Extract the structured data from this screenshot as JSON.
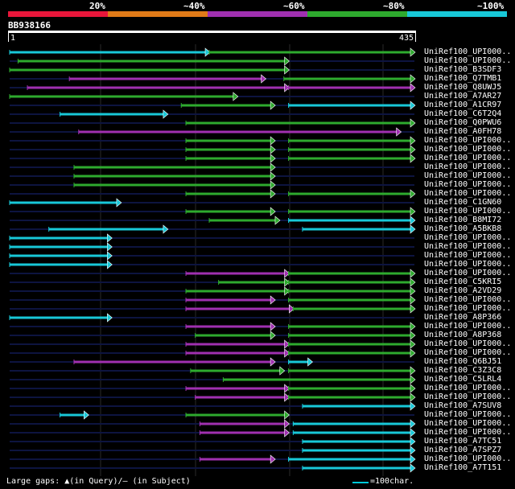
{
  "colors": {
    "c20": "#e8163a",
    "c40": "#e07a18",
    "c60": "#a030b0",
    "c80": "#2eaa2e",
    "c100": "#18c8d8",
    "grid": "#2a2a2a",
    "track": "#0d1440"
  },
  "legend": [
    {
      "label": "20%",
      "color": "#e8163a"
    },
    {
      "label": "~40%",
      "color": "#e07a18"
    },
    {
      "label": "~60%",
      "color": "#a030b0"
    },
    {
      "label": "~80%",
      "color": "#2eaa2e"
    },
    {
      "label": "~100%",
      "color": "#18c8d8"
    }
  ],
  "query": {
    "name": "BB938166",
    "start": "1",
    "end": "435",
    "length": 435
  },
  "hits": [
    {
      "label": "UniRef100_UPI000..",
      "segs": [
        [
          1,
          215,
          "c100"
        ],
        [
          215,
          435,
          "c80"
        ]
      ]
    },
    {
      "label": "UniRef100_UPI000..",
      "segs": [
        [
          10,
          300,
          "c80"
        ]
      ]
    },
    {
      "label": "UniRef100_B3SDF3",
      "segs": [
        [
          1,
          300,
          "c80"
        ]
      ]
    },
    {
      "label": "UniRef100_Q7TMB1",
      "segs": [
        [
          65,
          275,
          "c60"
        ],
        [
          295,
          435,
          "c80"
        ]
      ]
    },
    {
      "label": "UniRef100_Q8UWJ5",
      "segs": [
        [
          20,
          300,
          "c60"
        ],
        [
          300,
          435,
          "c60"
        ]
      ]
    },
    {
      "label": "UniRef100_A7AR27",
      "segs": [
        [
          1,
          245,
          "c80"
        ]
      ]
    },
    {
      "label": "UniRef100_A1CR97",
      "segs": [
        [
          185,
          285,
          "c80"
        ],
        [
          300,
          435,
          "c100"
        ]
      ]
    },
    {
      "label": "UniRef100_C6T2Q4",
      "segs": [
        [
          55,
          170,
          "c100"
        ]
      ]
    },
    {
      "label": "UniRef100_Q0PWU6",
      "segs": [
        [
          190,
          435,
          "c80"
        ]
      ]
    },
    {
      "label": "UniRef100_A0FH78",
      "segs": [
        [
          75,
          420,
          "c60"
        ]
      ]
    },
    {
      "label": "UniRef100_UPI000..",
      "segs": [
        [
          190,
          285,
          "c80"
        ],
        [
          300,
          435,
          "c80"
        ]
      ]
    },
    {
      "label": "UniRef100_UPI000..",
      "segs": [
        [
          190,
          285,
          "c80"
        ],
        [
          300,
          435,
          "c80"
        ]
      ]
    },
    {
      "label": "UniRef100_UPI000..",
      "segs": [
        [
          190,
          285,
          "c80"
        ],
        [
          300,
          435,
          "c80"
        ]
      ]
    },
    {
      "label": "UniRef100_UPI000..",
      "segs": [
        [
          70,
          285,
          "c80"
        ]
      ]
    },
    {
      "label": "UniRef100_UPI000..",
      "segs": [
        [
          70,
          285,
          "c80"
        ]
      ]
    },
    {
      "label": "UniRef100_UPI000..",
      "segs": [
        [
          70,
          285,
          "c80"
        ]
      ]
    },
    {
      "label": "UniRef100_UPI000..",
      "segs": [
        [
          190,
          285,
          "c80"
        ],
        [
          300,
          435,
          "c80"
        ]
      ]
    },
    {
      "label": "UniRef100_C1GN60",
      "segs": [
        [
          1,
          120,
          "c100"
        ]
      ]
    },
    {
      "label": "UniRef100_UPI000..",
      "segs": [
        [
          190,
          285,
          "c80"
        ],
        [
          300,
          435,
          "c80"
        ]
      ]
    },
    {
      "label": "UniRef100_B8MI72",
      "segs": [
        [
          215,
          290,
          "c80"
        ],
        [
          300,
          435,
          "c100"
        ]
      ]
    },
    {
      "label": "UniRef100_A5BKB8",
      "segs": [
        [
          43,
          170,
          "c100"
        ],
        [
          315,
          435,
          "c100"
        ]
      ]
    },
    {
      "label": "UniRef100_UPI000..",
      "segs": [
        [
          1,
          110,
          "c100"
        ]
      ]
    },
    {
      "label": "UniRef100_UPI000..",
      "segs": [
        [
          1,
          110,
          "c100"
        ]
      ]
    },
    {
      "label": "UniRef100_UPI000..",
      "segs": [
        [
          1,
          110,
          "c100"
        ]
      ]
    },
    {
      "label": "UniRef100_UPI000..",
      "segs": [
        [
          1,
          110,
          "c100"
        ]
      ]
    },
    {
      "label": "UniRef100_UPI000..",
      "segs": [
        [
          190,
          300,
          "c60"
        ],
        [
          300,
          435,
          "c80"
        ]
      ]
    },
    {
      "label": "UniRef100_C5KRI5",
      "segs": [
        [
          225,
          300,
          "c80"
        ],
        [
          300,
          435,
          "c80"
        ]
      ]
    },
    {
      "label": "UniRef100_A2VD29",
      "segs": [
        [
          190,
          300,
          "c80"
        ],
        [
          300,
          435,
          "c80"
        ]
      ]
    },
    {
      "label": "UniRef100_UPI000..",
      "segs": [
        [
          190,
          285,
          "c60"
        ],
        [
          300,
          435,
          "c80"
        ]
      ]
    },
    {
      "label": "UniRef100_UPI000..",
      "segs": [
        [
          190,
          305,
          "c60"
        ],
        [
          305,
          435,
          "c80"
        ]
      ]
    },
    {
      "label": "UniRef100_A8P366",
      "segs": [
        [
          1,
          110,
          "c100"
        ]
      ]
    },
    {
      "label": "UniRef100_UPI000..",
      "segs": [
        [
          190,
          285,
          "c60"
        ],
        [
          300,
          435,
          "c80"
        ]
      ]
    },
    {
      "label": "UniRef100_A8P368",
      "segs": [
        [
          200,
          285,
          "c80"
        ],
        [
          300,
          435,
          "c80"
        ]
      ]
    },
    {
      "label": "UniRef100_UPI000..",
      "segs": [
        [
          190,
          300,
          "c60"
        ],
        [
          300,
          435,
          "c80"
        ]
      ]
    },
    {
      "label": "UniRef100_UPI000..",
      "segs": [
        [
          190,
          300,
          "c60"
        ],
        [
          300,
          435,
          "c80"
        ]
      ]
    },
    {
      "label": "UniRef100_Q6BJ51",
      "segs": [
        [
          70,
          285,
          "c60"
        ],
        [
          300,
          325,
          "c100"
        ]
      ]
    },
    {
      "label": "UniRef100_C3Z3C8",
      "segs": [
        [
          195,
          295,
          "c80"
        ],
        [
          300,
          435,
          "c80"
        ]
      ]
    },
    {
      "label": "UniRef100_C5LRL4",
      "segs": [
        [
          230,
          435,
          "c80"
        ]
      ]
    },
    {
      "label": "UniRef100_UPI000..",
      "segs": [
        [
          190,
          300,
          "c60"
        ],
        [
          300,
          435,
          "c80"
        ]
      ]
    },
    {
      "label": "UniRef100_UPI000..",
      "segs": [
        [
          200,
          300,
          "c60"
        ],
        [
          300,
          435,
          "c80"
        ]
      ]
    },
    {
      "label": "UniRef100_A7SUV8",
      "segs": [
        [
          315,
          435,
          "c100"
        ]
      ]
    },
    {
      "label": "UniRef100_UPI000..",
      "segs": [
        [
          55,
          85,
          "c100"
        ],
        [
          190,
          300,
          "c80"
        ]
      ]
    },
    {
      "label": "UniRef100_UPI000..",
      "segs": [
        [
          205,
          300,
          "c60"
        ],
        [
          305,
          435,
          "c100"
        ]
      ]
    },
    {
      "label": "UniRef100_UPI000..",
      "segs": [
        [
          205,
          300,
          "c60"
        ],
        [
          305,
          435,
          "c100"
        ]
      ]
    },
    {
      "label": "UniRef100_A7TC51",
      "segs": [
        [
          315,
          435,
          "c100"
        ]
      ]
    },
    {
      "label": "UniRef100_A7SPZ7",
      "segs": [
        [
          315,
          435,
          "c100"
        ]
      ]
    },
    {
      "label": "UniRef100_UPI000..",
      "segs": [
        [
          205,
          285,
          "c60"
        ],
        [
          300,
          435,
          "c100"
        ]
      ]
    },
    {
      "label": "UniRef100_A7T151",
      "segs": [
        [
          315,
          435,
          "c100"
        ]
      ]
    }
  ],
  "footer": {
    "text": "Large gaps: ▲(in Query)/– (in Subject)",
    "scale": "=100char."
  }
}
